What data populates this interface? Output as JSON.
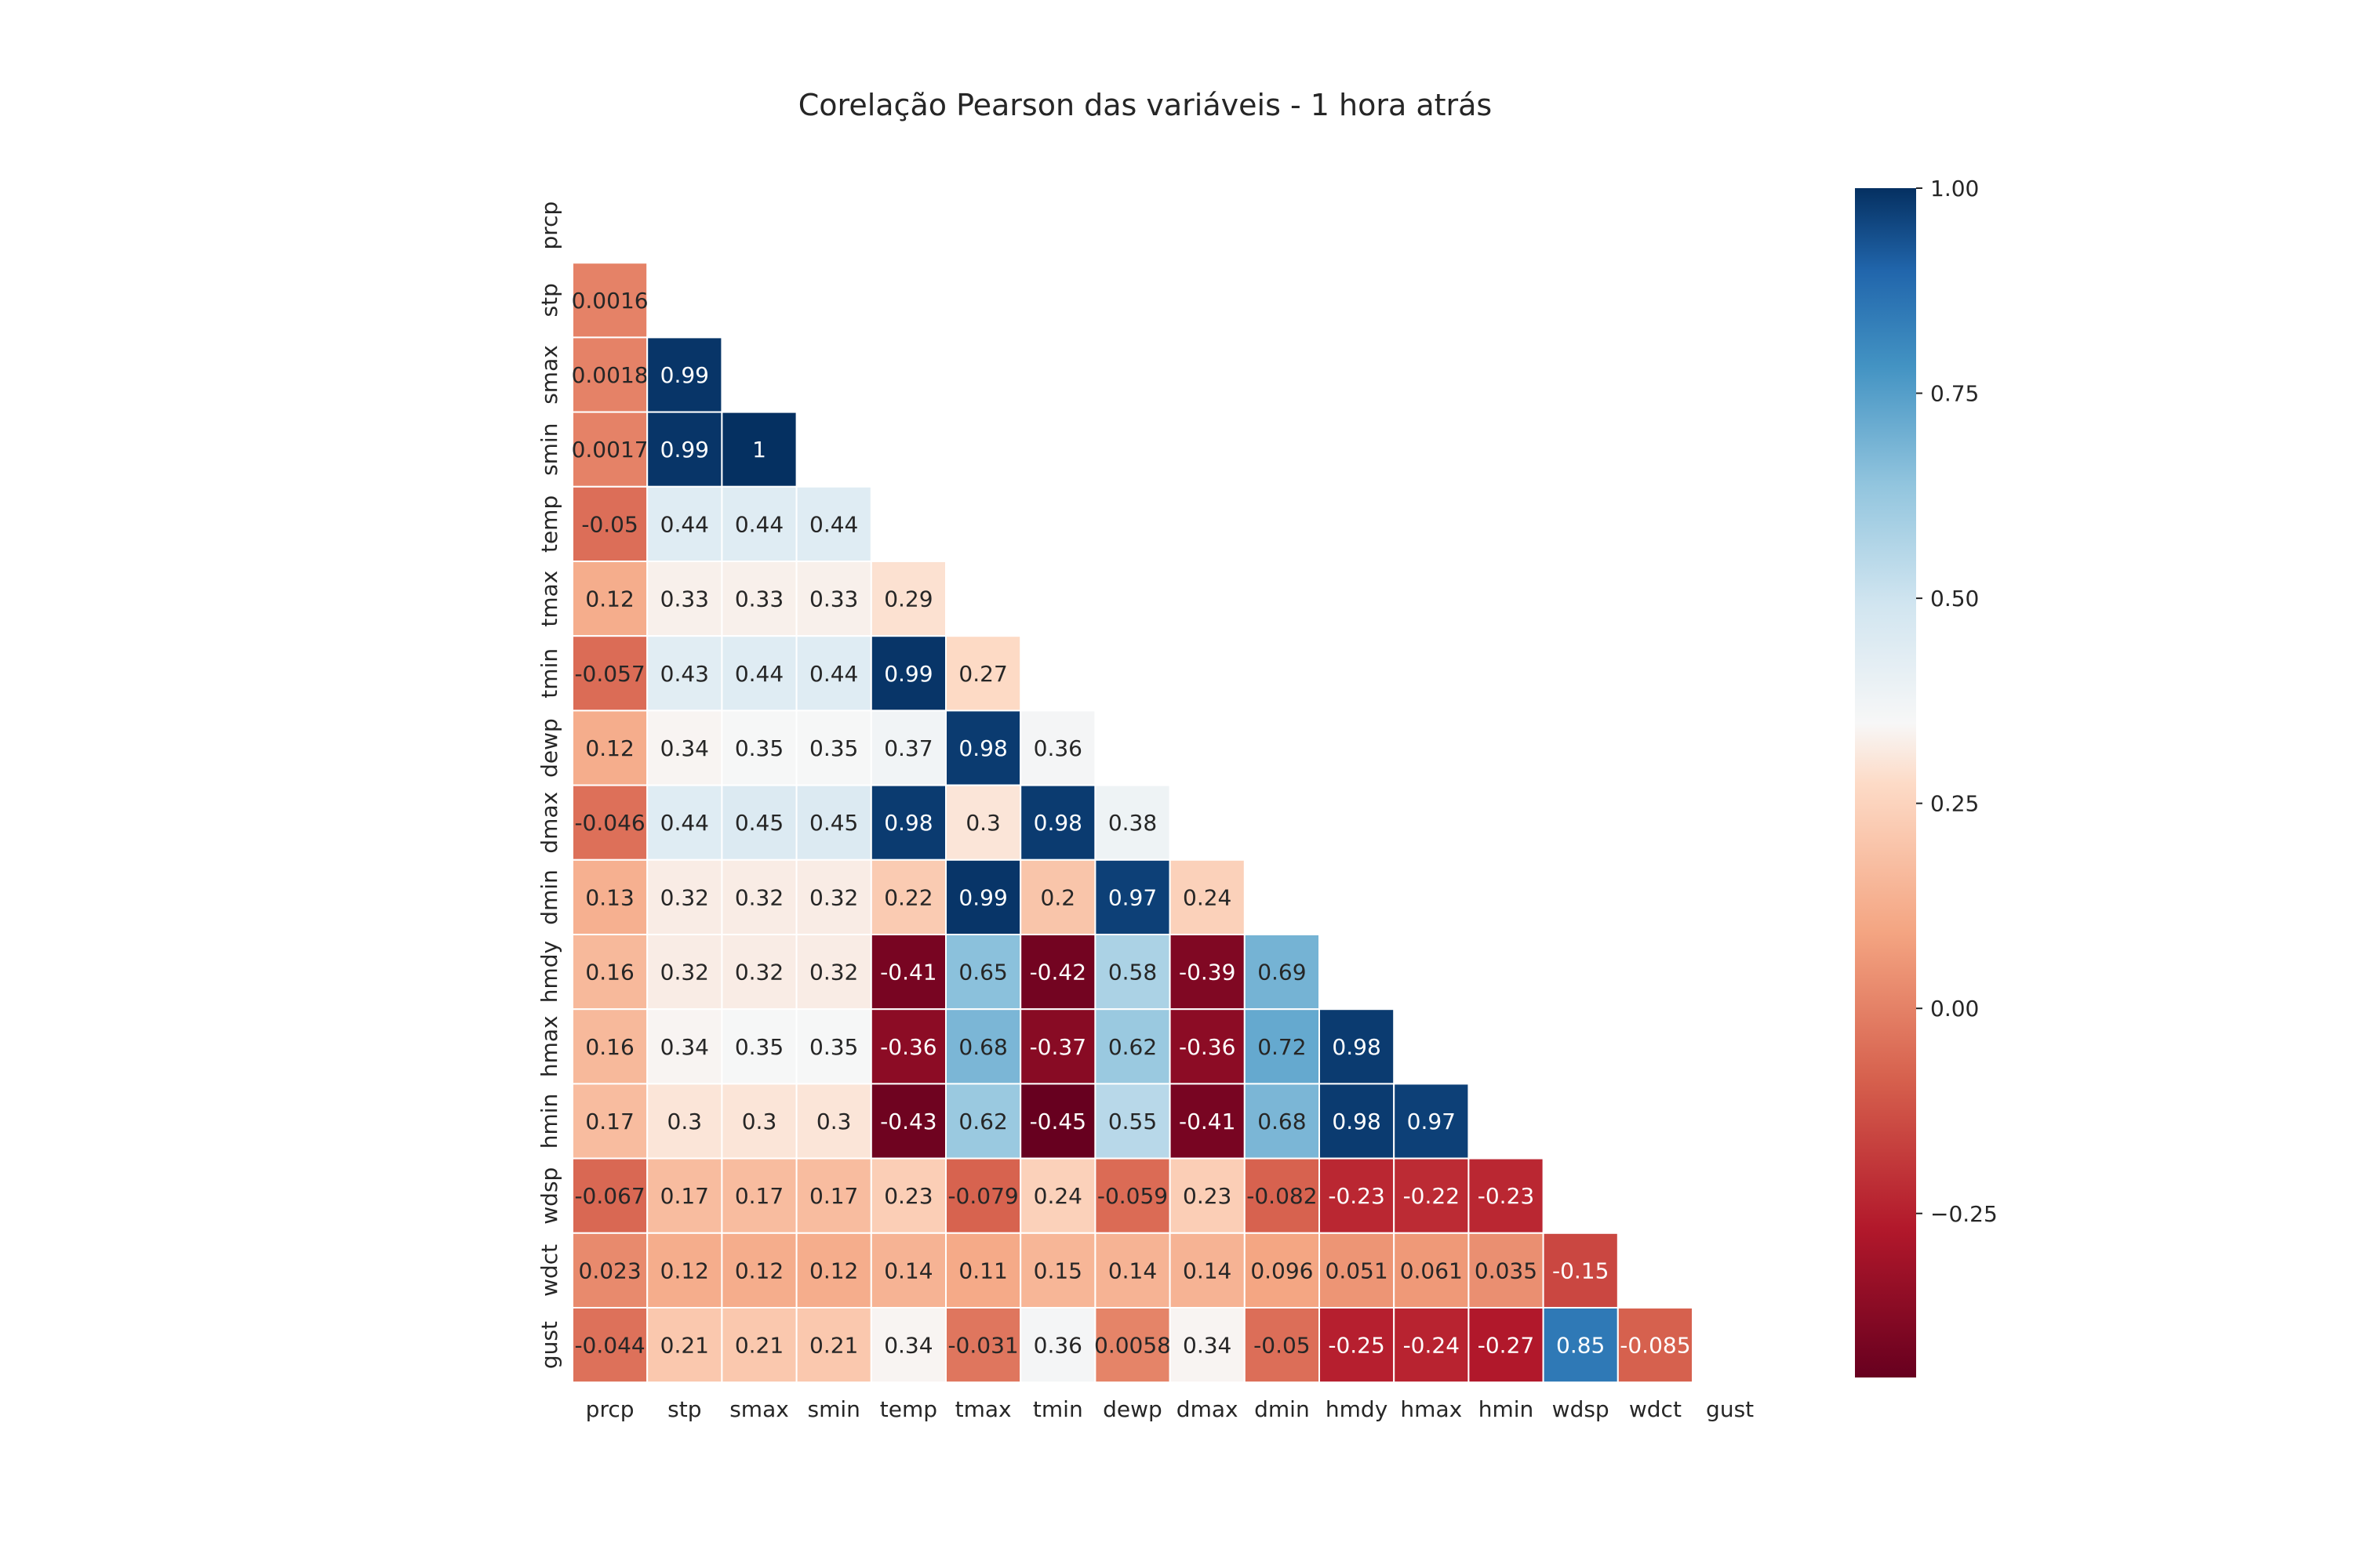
{
  "chart_data": {
    "type": "heatmap",
    "title": "Corelação Pearson das variáveis - 1 hora atrás",
    "xlabel": "",
    "ylabel": "",
    "variables": [
      "prcp",
      "stp",
      "smax",
      "smin",
      "temp",
      "tmax",
      "tmin",
      "dewp",
      "dmax",
      "dmin",
      "hmdy",
      "hmax",
      "hmin",
      "wdsp",
      "wdct",
      "gust"
    ],
    "mask": "upper-triangle-including-diagonal",
    "matrix": [
      [],
      [
        "0.0016"
      ],
      [
        "0.0018",
        "0.99"
      ],
      [
        "0.0017",
        "0.99",
        "1"
      ],
      [
        "-0.05",
        "0.44",
        "0.44",
        "0.44"
      ],
      [
        "0.12",
        "0.33",
        "0.33",
        "0.33",
        "0.29"
      ],
      [
        "-0.057",
        "0.43",
        "0.44",
        "0.44",
        "0.99",
        "0.27"
      ],
      [
        "0.12",
        "0.34",
        "0.35",
        "0.35",
        "0.37",
        "0.98",
        "0.36"
      ],
      [
        "-0.046",
        "0.44",
        "0.45",
        "0.45",
        "0.98",
        "0.3",
        "0.98",
        "0.38"
      ],
      [
        "0.13",
        "0.32",
        "0.32",
        "0.32",
        "0.22",
        "0.99",
        "0.2",
        "0.97",
        "0.24"
      ],
      [
        "0.16",
        "0.32",
        "0.32",
        "0.32",
        "-0.41",
        "0.65",
        "-0.42",
        "0.58",
        "-0.39",
        "0.69"
      ],
      [
        "0.16",
        "0.34",
        "0.35",
        "0.35",
        "-0.36",
        "0.68",
        "-0.37",
        "0.62",
        "-0.36",
        "0.72",
        "0.98"
      ],
      [
        "0.17",
        "0.3",
        "0.3",
        "0.3",
        "-0.43",
        "0.62",
        "-0.45",
        "0.55",
        "-0.41",
        "0.68",
        "0.98",
        "0.97"
      ],
      [
        "-0.067",
        "0.17",
        "0.17",
        "0.17",
        "0.23",
        "-0.079",
        "0.24",
        "-0.059",
        "0.23",
        "-0.082",
        "-0.23",
        "-0.22",
        "-0.23"
      ],
      [
        "0.023",
        "0.12",
        "0.12",
        "0.12",
        "0.14",
        "0.11",
        "0.15",
        "0.14",
        "0.14",
        "0.096",
        "0.051",
        "0.061",
        "0.035",
        "-0.15"
      ],
      [
        "-0.044",
        "0.21",
        "0.21",
        "0.21",
        "0.34",
        "-0.031",
        "0.36",
        "0.0058",
        "0.34",
        "-0.05",
        "-0.25",
        "-0.24",
        "-0.27",
        "0.85",
        "-0.085"
      ]
    ],
    "colormap": "RdBu",
    "vmin": -0.45,
    "vmax": 1.0,
    "colorbar_ticks": [
      "1.00",
      "0.75",
      "0.50",
      "0.25",
      "0.00",
      "−0.25"
    ],
    "grid": false,
    "legend": "colorbar-right"
  }
}
